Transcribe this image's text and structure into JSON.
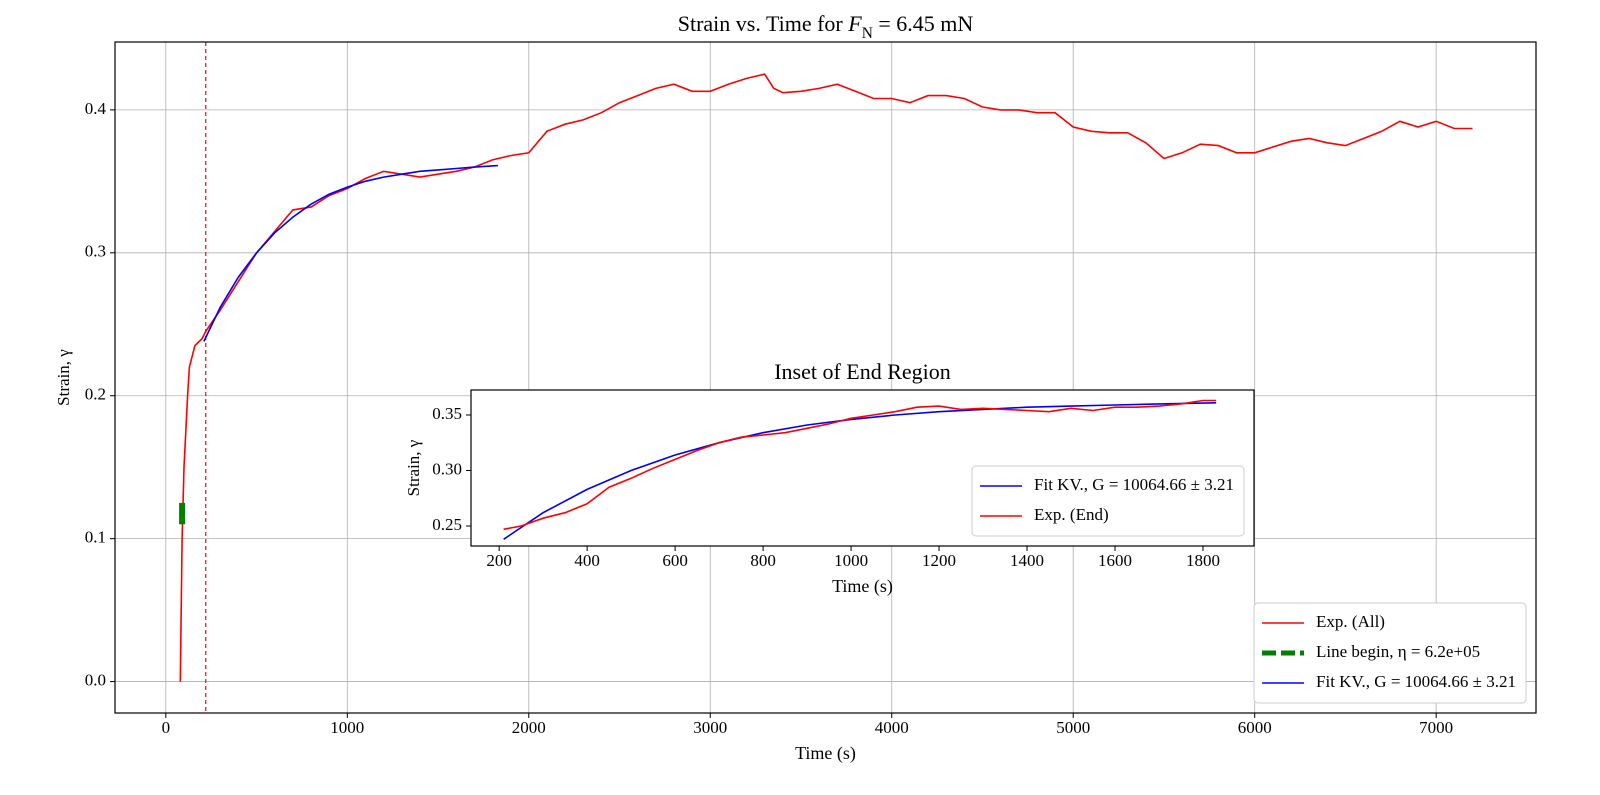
{
  "chart_data": [
    {
      "type": "line",
      "title": [
        "Strain vs. Time for ",
        "F",
        "N",
        " = 6.45 mN"
      ],
      "xlabel": "Time (s)",
      "ylabel": "Strain, γ",
      "xlim": [
        -280,
        7550
      ],
      "ylim": [
        -0.022,
        0.4475
      ],
      "xticks": [
        0,
        1000,
        2000,
        3000,
        4000,
        5000,
        6000,
        7000
      ],
      "yticks": [
        {
          "value": 0,
          "label": "0.0"
        },
        0.1,
        0.2,
        0.3,
        0.4
      ],
      "grid": true,
      "legend": "lower right",
      "vlines": [
        {
          "x": 220,
          "color": "red"
        }
      ],
      "series": [
        {
          "name": "Exp. (All)",
          "color": "red",
          "x": [
            80,
            90,
            100,
            120,
            130,
            160,
            200,
            220,
            300,
            400,
            500,
            600,
            700,
            800,
            900,
            1000,
            1100,
            1200,
            1300,
            1400,
            1500,
            1600,
            1700,
            1800,
            1900,
            2000,
            2100,
            2200,
            2300,
            2400,
            2500,
            2600,
            2700,
            2800,
            2900,
            3000,
            3100,
            3200,
            3300,
            3350,
            3400,
            3500,
            3600,
            3700,
            3800,
            3900,
            4000,
            4100,
            4200,
            4300,
            4400,
            4500,
            4600,
            4700,
            4800,
            4900,
            5000,
            5100,
            5200,
            5300,
            5400,
            5500,
            5600,
            5700,
            5800,
            5900,
            6000,
            6100,
            6200,
            6300,
            6400,
            6500,
            6600,
            6700,
            6800,
            6900,
            7000,
            7100,
            7200
          ],
          "values": [
            0.0,
            0.1,
            0.15,
            0.2,
            0.22,
            0.235,
            0.24,
            0.245,
            0.26,
            0.28,
            0.3,
            0.315,
            0.33,
            0.332,
            0.34,
            0.345,
            0.352,
            0.357,
            0.355,
            0.353,
            0.355,
            0.357,
            0.36,
            0.365,
            0.368,
            0.37,
            0.385,
            0.39,
            0.393,
            0.398,
            0.405,
            0.41,
            0.415,
            0.418,
            0.413,
            0.413,
            0.418,
            0.422,
            0.425,
            0.415,
            0.412,
            0.413,
            0.415,
            0.418,
            0.413,
            0.408,
            0.408,
            0.405,
            0.41,
            0.41,
            0.408,
            0.402,
            0.4,
            0.4,
            0.398,
            0.398,
            0.388,
            0.385,
            0.384,
            0.384,
            0.377,
            0.366,
            0.37,
            0.376,
            0.375,
            0.37,
            0.37,
            0.374,
            0.378,
            0.38,
            0.377,
            0.375,
            0.38,
            0.385,
            0.392,
            0.388,
            0.392,
            0.387,
            0.387
          ]
        },
        {
          "name": "Line begin, η = 6.2e+05",
          "color": "green",
          "linestyle": "dashed",
          "x": [
            90,
            90
          ],
          "values": [
            0.11,
            0.125
          ]
        },
        {
          "name": "Fit KV., G = 10064.66 ± 3.21",
          "color": "blue",
          "x": [
            210,
            300,
            400,
            500,
            600,
            700,
            800,
            900,
            1000,
            1100,
            1200,
            1300,
            1400,
            1500,
            1600,
            1700,
            1830
          ],
          "values": [
            0.238,
            0.262,
            0.283,
            0.3,
            0.314,
            0.325,
            0.334,
            0.341,
            0.346,
            0.35,
            0.353,
            0.355,
            0.357,
            0.358,
            0.359,
            0.36,
            0.361
          ]
        }
      ]
    },
    {
      "type": "line",
      "title": "Inset of End Region",
      "xlabel": "Time (s)",
      "ylabel": "Strain, γ",
      "xlim": [
        136,
        1916
      ],
      "ylim": [
        0.232,
        0.3725
      ],
      "xticks": [
        200,
        400,
        600,
        800,
        1000,
        1200,
        1400,
        1600,
        1800
      ],
      "yticks": [
        0.25,
        {
          "value": 0.3,
          "label": "0.30"
        },
        0.35
      ],
      "grid": false,
      "legend": "lower right",
      "series": [
        {
          "name": "Fit KV., G = 10064.66 ± 3.21",
          "color": "blue",
          "x": [
            210,
            300,
            400,
            500,
            600,
            700,
            800,
            900,
            1000,
            1100,
            1200,
            1300,
            1400,
            1500,
            1600,
            1700,
            1830
          ],
          "values": [
            0.238,
            0.262,
            0.283,
            0.3,
            0.314,
            0.325,
            0.334,
            0.341,
            0.346,
            0.35,
            0.353,
            0.355,
            0.357,
            0.358,
            0.359,
            0.36,
            0.361
          ]
        },
        {
          "name": "Exp. (End)",
          "color": "red",
          "x": [
            210,
            250,
            300,
            350,
            400,
            450,
            500,
            550,
            600,
            650,
            700,
            750,
            800,
            850,
            900,
            950,
            1000,
            1050,
            1100,
            1150,
            1200,
            1250,
            1300,
            1350,
            1400,
            1450,
            1500,
            1550,
            1600,
            1650,
            1700,
            1750,
            1800,
            1830
          ],
          "values": [
            0.247,
            0.25,
            0.257,
            0.262,
            0.27,
            0.285,
            0.293,
            0.302,
            0.31,
            0.318,
            0.325,
            0.33,
            0.332,
            0.334,
            0.338,
            0.342,
            0.347,
            0.35,
            0.353,
            0.357,
            0.358,
            0.355,
            0.356,
            0.355,
            0.354,
            0.353,
            0.356,
            0.354,
            0.357,
            0.357,
            0.358,
            0.36,
            0.363,
            0.363
          ]
        }
      ]
    }
  ]
}
